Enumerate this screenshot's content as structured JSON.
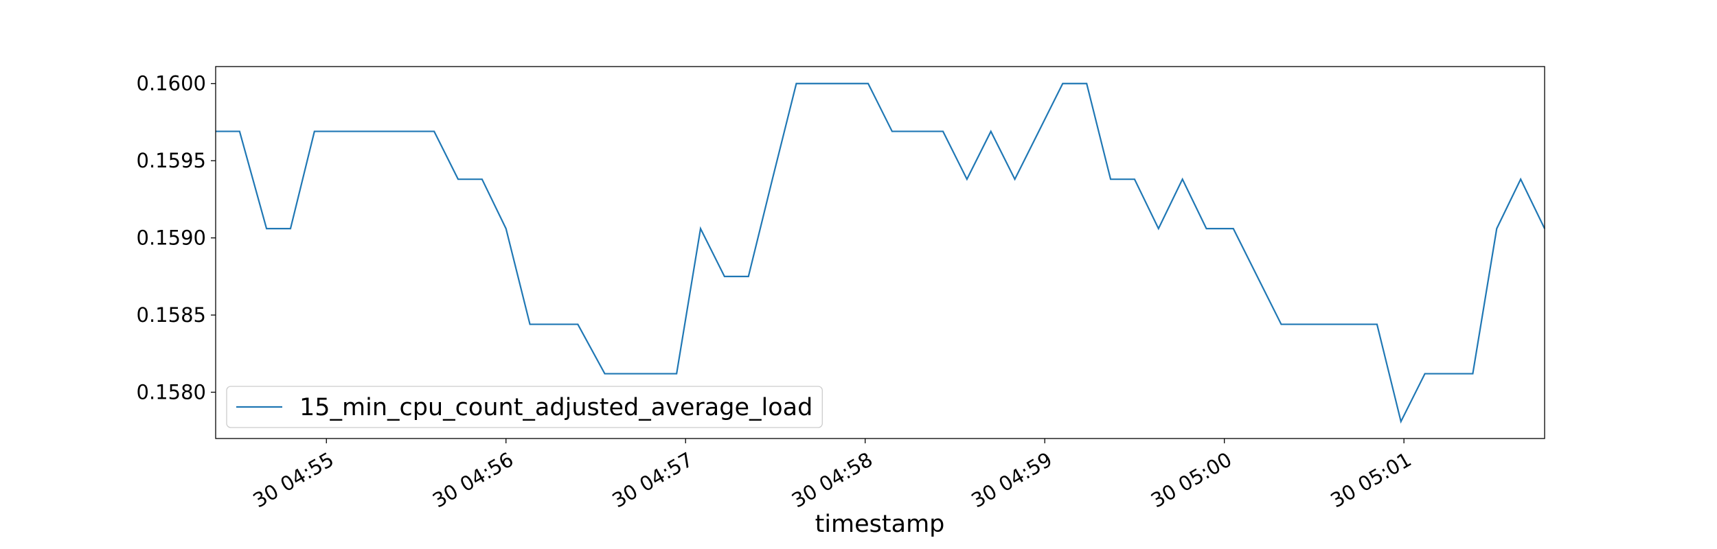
{
  "chart_data": {
    "type": "line",
    "xlabel": "timestamp",
    "x": [
      "30 04:54:23",
      "30 04:54:31",
      "30 04:54:40",
      "30 04:54:48",
      "30 04:54:56",
      "30 04:55:04",
      "30 04:55:12",
      "30 04:55:20",
      "30 04:55:28",
      "30 04:55:36",
      "30 04:55:44",
      "30 04:55:52",
      "30 04:56:00",
      "30 04:56:08",
      "30 04:56:16",
      "30 04:56:24",
      "30 04:56:33",
      "30 04:56:41",
      "30 04:56:49",
      "30 04:56:57",
      "30 04:57:05",
      "30 04:57:13",
      "30 04:57:21",
      "30 04:57:29",
      "30 04:57:37",
      "30 04:57:45",
      "30 04:57:53",
      "30 04:58:01",
      "30 04:58:09",
      "30 04:58:18",
      "30 04:58:26",
      "30 04:58:34",
      "30 04:58:42",
      "30 04:58:50",
      "30 04:58:58",
      "30 04:59:06",
      "30 04:59:14",
      "30 04:59:22",
      "30 04:59:30",
      "30 04:59:38",
      "30 04:59:46",
      "30 04:59:54",
      "30 05:00:03",
      "30 05:00:11",
      "30 05:00:19",
      "30 05:00:27",
      "30 05:00:35",
      "30 05:00:43",
      "30 05:00:51",
      "30 05:00:59",
      "30 05:01:07",
      "30 05:01:15",
      "30 05:01:23",
      "30 05:01:31",
      "30 05:01:39",
      "30 05:01:47"
    ],
    "series": [
      {
        "name": "15_min_cpu_count_adjusted_average_load",
        "color": "#1f77b4",
        "values": [
          0.15969,
          0.15969,
          0.15906,
          0.15906,
          0.15969,
          0.15969,
          0.15969,
          0.15969,
          0.15969,
          0.15969,
          0.15938,
          0.15938,
          0.15906,
          0.15844,
          0.15844,
          0.15844,
          0.15812,
          0.15812,
          0.15812,
          0.15812,
          0.15906,
          0.15875,
          0.15875,
          0.15938,
          0.16,
          0.16,
          0.16,
          0.16,
          0.15969,
          0.15969,
          0.15969,
          0.15938,
          0.15969,
          0.15938,
          0.15969,
          0.16,
          0.16,
          0.15938,
          0.15938,
          0.15906,
          0.15938,
          0.15906,
          0.15906,
          0.15875,
          0.15844,
          0.15844,
          0.15844,
          0.15844,
          0.15844,
          0.15781,
          0.15812,
          0.15812,
          0.15812,
          0.15906,
          0.15938,
          0.15906
        ]
      }
    ],
    "xlim": [
      "30 04:54:23",
      "30 05:01:47"
    ],
    "xticks": [
      {
        "value": "30 04:55:00",
        "label": "30 04:55"
      },
      {
        "value": "30 04:56:00",
        "label": "30 04:56"
      },
      {
        "value": "30 04:57:00",
        "label": "30 04:57"
      },
      {
        "value": "30 04:58:00",
        "label": "30 04:58"
      },
      {
        "value": "30 04:59:00",
        "label": "30 04:59"
      },
      {
        "value": "30 05:00:00",
        "label": "30 05:00"
      },
      {
        "value": "30 05:01:00",
        "label": "30 05:01"
      }
    ],
    "ylim": [
      0.1577,
      0.16011
    ],
    "yticks": [
      {
        "value": 0.158,
        "label": "0.1580"
      },
      0.1585,
      {
        "value": 0.159,
        "label": "0.1590"
      },
      0.1595,
      {
        "value": 0.16,
        "label": "0.1600"
      }
    ],
    "legend": "lower left"
  }
}
